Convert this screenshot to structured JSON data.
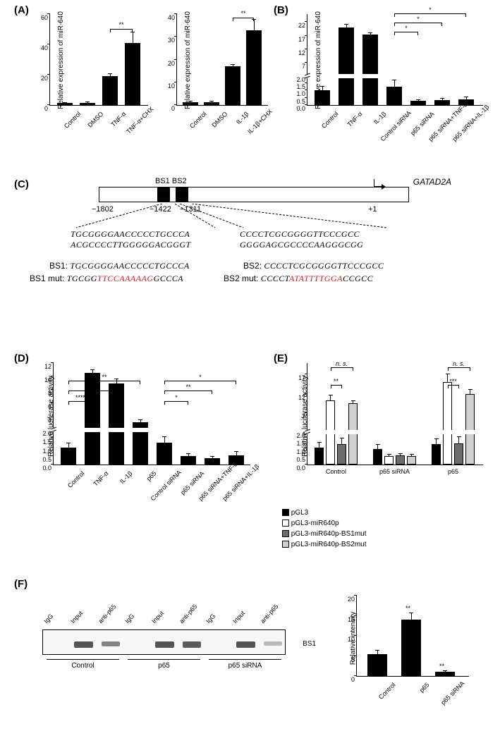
{
  "panels": {
    "A": "(A)",
    "B": "(B)",
    "C": "(C)",
    "D": "(D)",
    "E": "(E)",
    "F": "(F)"
  },
  "chartA1": {
    "ylabel": "Relative expression of miR-640",
    "ymax": 60,
    "ytick_step": 20,
    "bars": [
      {
        "label": "Control",
        "value": 1.2,
        "err": 0.4
      },
      {
        "label": "DMSO",
        "value": 1.3,
        "err": 0.4
      },
      {
        "label": "TNF-α",
        "value": 19,
        "err": 1.5
      },
      {
        "label": "TNF-α+CHX",
        "value": 41,
        "err": 7
      }
    ],
    "sig": [
      {
        "from": 2,
        "to": 3,
        "text": "**",
        "y": 50
      }
    ],
    "barcolor": "#000000"
  },
  "chartA2": {
    "ylabel": "Relative expression of miR-640",
    "ymax": 40,
    "ytick_step": 10,
    "bars": [
      {
        "label": "Control",
        "value": 1.2,
        "err": 0.3
      },
      {
        "label": "DMSO",
        "value": 1.3,
        "err": 0.3
      },
      {
        "label": "IL-1β",
        "value": 17,
        "err": 0.8
      },
      {
        "label": "IL-1β+CHX",
        "value": 33,
        "err": 4.5
      }
    ],
    "sig": [
      {
        "from": 2,
        "to": 3,
        "text": "**",
        "y": 38
      }
    ],
    "barcolor": "#000000"
  },
  "chartB": {
    "ylabel": "Relative expression of miR-640",
    "broken": true,
    "upper_min": 2,
    "upper_max": 25,
    "upper_step": 5,
    "lower_min": 0,
    "lower_max": 2,
    "lower_step": 0.5,
    "bars": [
      {
        "label": "Control",
        "value": 1.0,
        "err": 0.25
      },
      {
        "label": "TNF-α",
        "value": 20,
        "err": 1
      },
      {
        "label": "IL-1β",
        "value": 17.5,
        "err": 0.5
      },
      {
        "label": "Control siRNA",
        "value": 1.25,
        "err": 0.45
      },
      {
        "label": "p65 siRNA",
        "value": 0.3,
        "err": 0.05
      },
      {
        "label": "p65 siRNA+TNF-α",
        "value": 0.35,
        "err": 0.1
      },
      {
        "label": "p65 siRNA+IL-1β",
        "value": 0.38,
        "err": 0.15
      }
    ],
    "sig": [
      {
        "from": 3,
        "to": 4,
        "text": "*",
        "y": 80
      },
      {
        "from": 3,
        "to": 5,
        "text": "*",
        "y": 90
      },
      {
        "from": 3,
        "to": 6,
        "text": "*",
        "y": 100
      }
    ],
    "barcolor": "#000000"
  },
  "schematicC": {
    "gene": "GATAD2A",
    "bs1_label": "BS1",
    "bs2_label": "BS2",
    "pos_start": "−1802",
    "pos_bs1": "−1422",
    "pos_bs2": "−1311",
    "pos_tss": "+1",
    "bs1_seq1": "TGCGGGGAACCCCCTGCCCA",
    "bs1_seq2": "ACGCCCCTTGGGGGACGGGT",
    "bs2_seq1": "CCCCTCGCGGGGTTCCCGCC",
    "bs2_seq2": "GGGGAGCGCCCCAAGGGCGG",
    "bs1_label2": "BS1:",
    "bs1_wt": "TGCGGGGAACCCCCTGCCCA",
    "bs1_mut_label": "BS1 mut:",
    "bs1_mut_pre": "TGCGG",
    "bs1_mut_red": "TTCCAAAAAG",
    "bs1_mut_post": "GCCCA",
    "bs2_label2": "BS2:",
    "bs2_wt": "CCCCTCGCGGGGTTCCCGCC",
    "bs2_mut_label": "BS2 mut:",
    "bs2_mut_pre": "CCCCT",
    "bs2_mut_red": "ATATTTTGGA",
    "bs2_mut_post": "CCGCC",
    "mut_color": "#d32020"
  },
  "chartD": {
    "ylabel": "Relative luciferase activity",
    "broken": true,
    "upper_min": 2,
    "upper_max": 12,
    "upper_step": 2,
    "upper_start": 4,
    "lower_min": 0,
    "lower_max": 2,
    "lower_step": 0.5,
    "bars": [
      {
        "label": "Control",
        "value": 1.0,
        "err": 0.22
      },
      {
        "label": "TNF-α",
        "value": 10.5,
        "err": 0.4
      },
      {
        "label": "IL-1β",
        "value": 9,
        "err": 0.6
      },
      {
        "label": "p65",
        "value": 3.2,
        "err": 0.25
      },
      {
        "label": "Control siRNA",
        "value": 1.25,
        "err": 0.35
      },
      {
        "label": "p65 siRNA",
        "value": 0.48,
        "err": 0.12
      },
      {
        "label": "p65 siRNA+TNF-α",
        "value": 0.35,
        "err": 0.08
      },
      {
        "label": "p65 siRNA+IL-1β",
        "value": 0.55,
        "err": 0.2
      }
    ],
    "sig": [
      {
        "from": 0,
        "to": 1,
        "text": "****",
        "y": 62
      },
      {
        "from": 0,
        "to": 2,
        "text": "***",
        "y": 72
      },
      {
        "from": 0,
        "to": 3,
        "text": "**",
        "y": 82
      },
      {
        "from": 4,
        "to": 5,
        "text": "*",
        "y": 62
      },
      {
        "from": 4,
        "to": 6,
        "text": "**",
        "y": 72
      },
      {
        "from": 4,
        "to": 7,
        "text": "*",
        "y": 82
      }
    ],
    "barcolor": "#000000"
  },
  "chartE": {
    "ylabel": "Relative luciferase activity",
    "broken": true,
    "upper_min": 2,
    "upper_max": 20,
    "upper_step": 5,
    "lower_min": 0,
    "lower_max": 2,
    "lower_step": 0.5,
    "groups": [
      "Control",
      "p65 siRNA",
      "p65"
    ],
    "series": [
      {
        "name": "pGL3",
        "color": "#000000"
      },
      {
        "name": "pGL3-miR640p",
        "color": "#ffffff"
      },
      {
        "name": "pGL3-miR640p-BS1mut",
        "color": "#6b6b6b"
      },
      {
        "name": "pGL3-miR640p-BS2mut",
        "color": "#cfcfcf"
      }
    ],
    "values": [
      [
        {
          "v": 1.05,
          "e": 0.3
        },
        {
          "v": 10.2,
          "e": 1.3
        },
        {
          "v": 1.25,
          "e": 0.35
        },
        {
          "v": 9.5,
          "e": 0.6
        }
      ],
      [
        {
          "v": 0.95,
          "e": 0.25
        },
        {
          "v": 0.5,
          "e": 0.12
        },
        {
          "v": 0.55,
          "e": 0.1
        },
        {
          "v": 0.5,
          "e": 0.1
        }
      ],
      [
        {
          "v": 1.25,
          "e": 0.3
        },
        {
          "v": 15,
          "e": 2
        },
        {
          "v": 1.3,
          "e": 0.4
        },
        {
          "v": 12,
          "e": 1
        }
      ]
    ],
    "sig": [
      {
        "group": 0,
        "from": 1,
        "to": 2,
        "text": "**"
      },
      {
        "group": 0,
        "from": 1,
        "to": 3,
        "text": "n. s.",
        "top": true
      },
      {
        "group": 2,
        "from": 1,
        "to": 2,
        "text": "***"
      },
      {
        "group": 2,
        "from": 1,
        "to": 3,
        "text": "n. s.",
        "top": true
      }
    ]
  },
  "chartF": {
    "lanes": [
      "IgG",
      "Input",
      "anti-p65",
      "IgG",
      "Input",
      "anti-p65",
      "IgG",
      "Input",
      "anti-p65"
    ],
    "groups": [
      "Control",
      "p65",
      "p65 siRNA"
    ],
    "band_label": "BS1",
    "intensities": [
      0,
      1,
      0.6,
      0,
      1,
      0.95,
      0,
      1,
      0.15
    ]
  },
  "chartF2": {
    "ylabel": "Relative intensity",
    "ymax": 20,
    "ytick_step": 5,
    "bars": [
      {
        "label": "Control",
        "value": 5.5,
        "err": 0.9,
        "sig": ""
      },
      {
        "label": "p65",
        "value": 14,
        "err": 1.6,
        "sig": "**"
      },
      {
        "label": "p65 siRNA",
        "value": 1.0,
        "err": 0.2,
        "sig": "**"
      }
    ],
    "barcolor": "#000000"
  }
}
